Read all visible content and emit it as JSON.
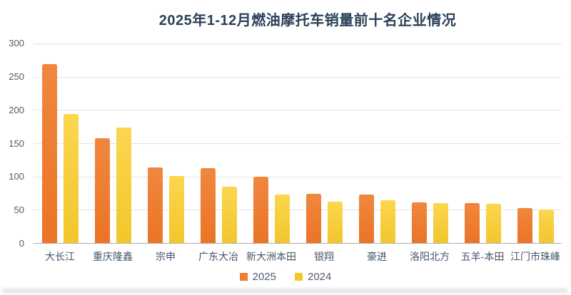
{
  "title": "2025年1-12月燃油摩托车销量前十名企业情况",
  "colors": {
    "title_text": "#2b4059",
    "axis_label_text": "#4e5d6e",
    "category_label_text": "#44546a",
    "gridline": "#e2e4e8",
    "baseline": "#adadad",
    "series_2025": "#ed7d31",
    "series_2024": "#f3c72e",
    "series_2025_gradient": [
      "#f0873e",
      "#eb7426"
    ],
    "series_2024_gradient": [
      "#fbd64f",
      "#f2c62c"
    ]
  },
  "chart_data": {
    "type": "bar",
    "title": "2025年1-12月燃油摩托车销量前十名企业情况",
    "xlabel": "",
    "ylabel": "",
    "ylim": [
      0,
      300
    ],
    "y_ticks": [
      300,
      250,
      200,
      150,
      100,
      50,
      0
    ],
    "grid": true,
    "legend_position": "bottom",
    "categories": [
      "大长江",
      "重庆隆鑫",
      "宗申",
      "广东大冶",
      "新大洲本田",
      "银翔",
      "豪进",
      "洛阳北方",
      "五羊-本田",
      "江门市珠峰"
    ],
    "series": [
      {
        "name": "2025",
        "color": "#ed7d31",
        "values": [
          269,
          157,
          114,
          112,
          100,
          74,
          73,
          61,
          60,
          53
        ]
      },
      {
        "name": "2024",
        "color": "#f3c72e",
        "values": [
          194,
          174,
          101,
          85,
          73,
          62,
          64,
          60,
          59,
          50
        ]
      }
    ]
  },
  "legend": {
    "items": [
      {
        "label": "2025",
        "color": "#ed7d31"
      },
      {
        "label": "2024",
        "color": "#f3c72e"
      }
    ]
  }
}
